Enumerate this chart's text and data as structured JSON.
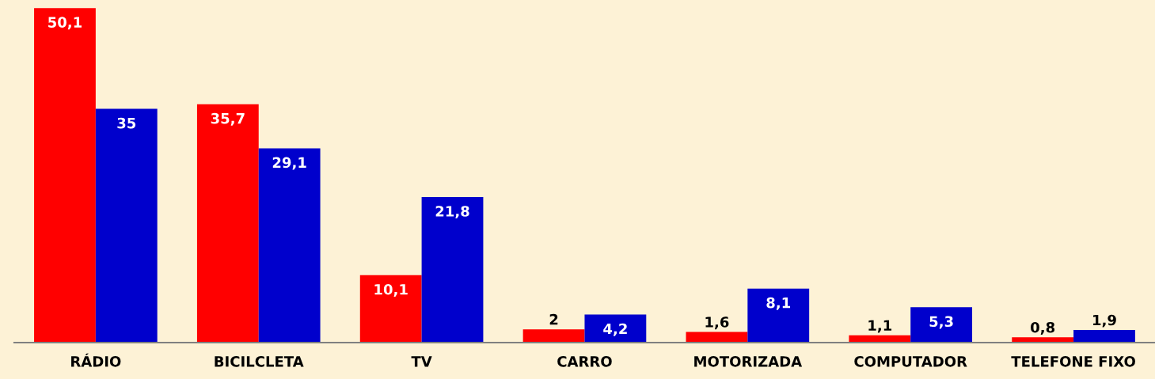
{
  "chart_data": {
    "type": "bar",
    "categories": [
      "RÁDIO",
      "BICILCLETA",
      "TV",
      "CARRO",
      "MOTORIZADA",
      "COMPUTADOR",
      "TELEFONE FIXO"
    ],
    "series": [
      {
        "color": "#ff0000",
        "values": [
          50.1,
          35.7,
          10.1,
          2,
          1.6,
          1.1,
          0.8
        ],
        "value_labels": [
          "50,1",
          "35,7",
          "10,1",
          "2",
          "1,6",
          "1,1",
          "0,8"
        ]
      },
      {
        "color": "#0000cc",
        "values": [
          35,
          29.1,
          21.8,
          4.2,
          8.1,
          5.3,
          1.9
        ],
        "value_labels": [
          "35",
          "29,1",
          "21,8",
          "4,2",
          "8,1",
          "5,3",
          "1,9"
        ]
      }
    ],
    "grid": false,
    "legend": false
  }
}
